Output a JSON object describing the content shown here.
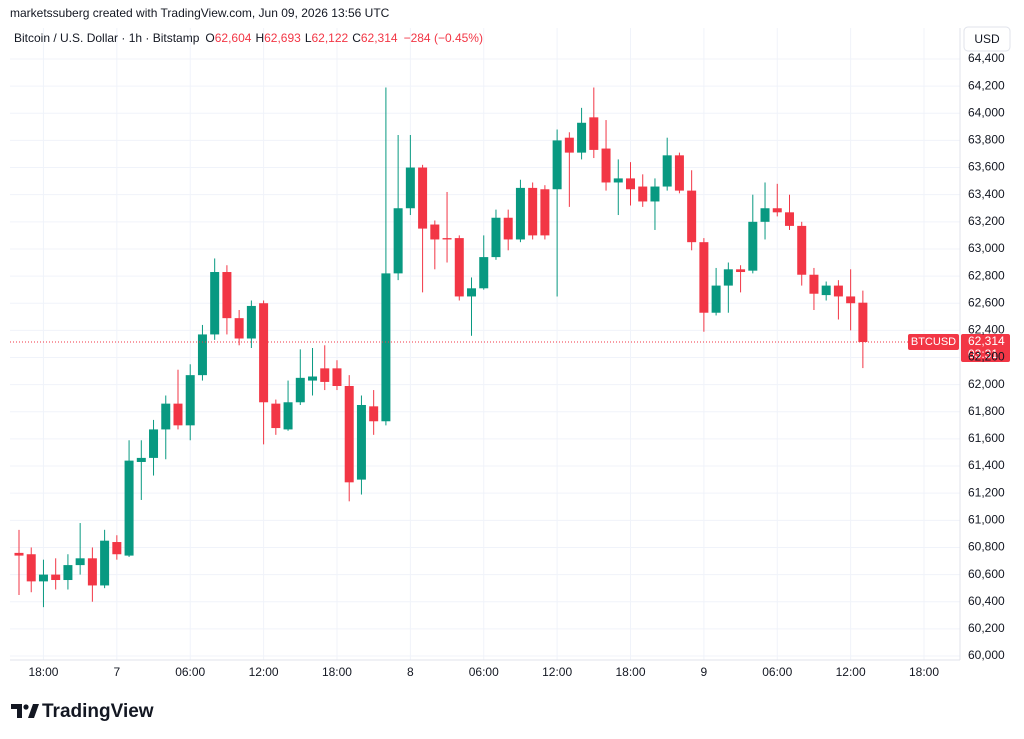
{
  "header": {
    "credit": "marketssuberg created with TradingView.com, Jun 09, 2026 13:56 UTC",
    "symbol": "Bitcoin / U.S. Dollar · 1h · Bitstamp",
    "o_key": "O",
    "o": "62,604",
    "h_key": "H",
    "h": "62,693",
    "l_key": "L",
    "l": "62,122",
    "c_key": "C",
    "c": "62,314",
    "change": "−284 (−0.45%)",
    "currency": "USD"
  },
  "footer": {
    "brand": "TradingView"
  },
  "chart_data": {
    "type": "candlestick",
    "categories": [
      null,
      null,
      "18:00",
      null,
      null,
      null,
      null,
      null,
      "7",
      null,
      null,
      null,
      null,
      null,
      "06:00",
      null,
      null,
      null,
      null,
      null,
      "12:00",
      null,
      null,
      null,
      null,
      null,
      "18:00",
      null,
      null,
      null,
      null,
      null,
      "8",
      null,
      null,
      null,
      null,
      null,
      "06:00",
      null,
      null,
      null,
      null,
      null,
      "12:00",
      null,
      null,
      null,
      null,
      null,
      "18:00",
      null,
      null,
      null,
      null,
      null,
      "9",
      null,
      null,
      null,
      null,
      null,
      "06:00",
      null,
      null,
      null,
      null,
      null,
      "12:00",
      null,
      null,
      null,
      null,
      null,
      "18:00",
      null,
      null,
      null
    ],
    "open": [
      60760,
      60750,
      60550,
      60600,
      60560,
      60670,
      60720,
      60520,
      60840,
      60740,
      61430,
      61460,
      61670,
      61860,
      61700,
      62070,
      62370,
      62830,
      62490,
      62340,
      62600,
      61860,
      61670,
      61870,
      62030,
      62120,
      62120,
      61990,
      61300,
      61840,
      61730,
      62820,
      63300,
      63600,
      63180,
      63080,
      63080,
      62650,
      62710,
      62940,
      63230,
      63070,
      63450,
      63440,
      63440,
      63820,
      63710,
      63970,
      63740,
      63490,
      63520,
      63460,
      63350,
      63460,
      63690,
      63430,
      63050,
      62530,
      62730,
      62850,
      62840,
      63200,
      63300,
      63270,
      63170,
      62810,
      62660,
      62730,
      62650,
      62604,
      null,
      null,
      null,
      null,
      null,
      null,
      null,
      null
    ],
    "high": [
      60930,
      60800,
      60710,
      60720,
      60750,
      60980,
      60800,
      60930,
      60890,
      61590,
      61590,
      61740,
      61920,
      62110,
      62150,
      62440,
      62930,
      62880,
      62550,
      62620,
      62620,
      61890,
      62030,
      62260,
      62270,
      62290,
      62180,
      62070,
      61920,
      61960,
      64190,
      63840,
      63840,
      63620,
      63210,
      63420,
      63100,
      62790,
      63100,
      63290,
      63290,
      63510,
      63490,
      63470,
      63880,
      63860,
      64040,
      64190,
      63950,
      63660,
      63640,
      63550,
      63520,
      63820,
      63710,
      63580,
      63080,
      62860,
      62900,
      62880,
      63400,
      63490,
      63480,
      63400,
      63200,
      62860,
      62760,
      62770,
      62850,
      62693,
      null,
      null,
      null,
      null,
      null,
      null,
      null,
      null
    ],
    "low": [
      60450,
      60470,
      60360,
      60490,
      60490,
      60600,
      60400,
      60500,
      60710,
      60730,
      61150,
      61330,
      61450,
      61670,
      61590,
      62030,
      62330,
      62370,
      62290,
      62270,
      61560,
      61630,
      61660,
      61850,
      61920,
      61960,
      61960,
      61140,
      61190,
      61630,
      61700,
      62770,
      63250,
      62680,
      62850,
      62900,
      62620,
      62360,
      62700,
      62920,
      62990,
      63050,
      63070,
      63070,
      62650,
      63310,
      63660,
      63670,
      63430,
      63250,
      63320,
      63310,
      63140,
      63430,
      63410,
      62990,
      62390,
      62510,
      62530,
      62680,
      62820,
      63070,
      63240,
      63140,
      62730,
      62550,
      62620,
      62480,
      62400,
      62122,
      null,
      null,
      null,
      null,
      null,
      null,
      null,
      null
    ],
    "close": [
      60740,
      60550,
      60600,
      60560,
      60670,
      60720,
      60520,
      60850,
      60750,
      61440,
      61460,
      61670,
      61860,
      61700,
      62070,
      62370,
      62830,
      62490,
      62340,
      62580,
      61870,
      61680,
      61870,
      62050,
      62060,
      62020,
      61990,
      61280,
      61850,
      61730,
      62820,
      63300,
      63600,
      63150,
      63070,
      63070,
      62650,
      62710,
      62940,
      63230,
      63070,
      63450,
      63100,
      63100,
      63800,
      63710,
      63930,
      63730,
      63490,
      63520,
      63440,
      63350,
      63460,
      63690,
      63430,
      63050,
      62530,
      62730,
      62850,
      62830,
      63200,
      63300,
      63270,
      63170,
      62810,
      62670,
      62730,
      62650,
      62600,
      62314,
      null,
      null,
      null,
      null,
      null,
      null,
      null,
      null
    ],
    "up_color": "#089981",
    "down_color": "#f23645",
    "ylim": [
      60000,
      64400
    ],
    "yticks": [
      {
        "value": 60000,
        "label": "60,000"
      },
      {
        "value": 60200,
        "label": "60,200"
      },
      {
        "value": 60400,
        "label": "60,400"
      },
      {
        "value": 60600,
        "label": "60,600"
      },
      {
        "value": 60800,
        "label": "60,800"
      },
      {
        "value": 61000,
        "label": "61,000"
      },
      {
        "value": 61200,
        "label": "61,200"
      },
      {
        "value": 61400,
        "label": "61,400"
      },
      {
        "value": 61600,
        "label": "61,600"
      },
      {
        "value": 61800,
        "label": "61,800"
      },
      {
        "value": 62000,
        "label": "62,000"
      },
      {
        "value": 62200,
        "label": "62,200"
      },
      {
        "value": 62400,
        "label": "62,400"
      },
      {
        "value": 62600,
        "label": "62,600"
      },
      {
        "value": 62800,
        "label": "62,800"
      },
      {
        "value": 63000,
        "label": "63,000"
      },
      {
        "value": 63200,
        "label": "63,200"
      },
      {
        "value": 63400,
        "label": "63,400"
      },
      {
        "value": 63600,
        "label": "63,600"
      },
      {
        "value": 63800,
        "label": "63,800"
      },
      {
        "value": 64000,
        "label": "64,000"
      },
      {
        "value": 64200,
        "label": "64,200"
      },
      {
        "value": 64400,
        "label": "64,400"
      }
    ],
    "grid": true,
    "last_tag": {
      "symbol": "BTCUSD",
      "price": "62,314",
      "countdown": "03:31"
    }
  }
}
